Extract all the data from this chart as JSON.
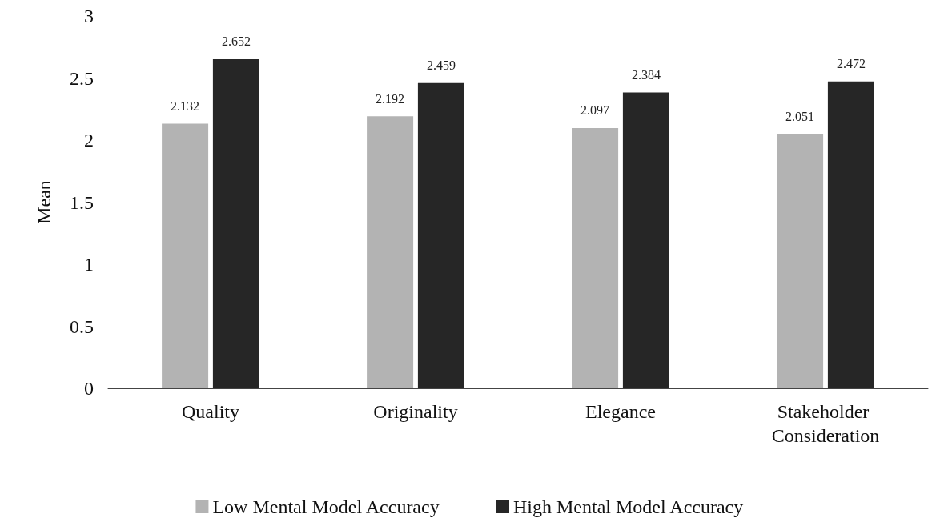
{
  "chart_data": {
    "type": "bar",
    "ylabel": "Mean",
    "categories": [
      "Quality",
      "Originality",
      "Elegance",
      "Stakeholder Consideration"
    ],
    "series": [
      {
        "name": "Low Mental Model Accuracy",
        "color": "#b3b3b3",
        "values": [
          2.132,
          2.192,
          2.097,
          2.051
        ]
      },
      {
        "name": "High Mental Model Accuracy",
        "color": "#262626",
        "values": [
          2.652,
          2.459,
          2.384,
          2.472
        ]
      }
    ],
    "ylim": [
      0,
      3
    ],
    "yticks": [
      0,
      0.5,
      1,
      1.5,
      2,
      2.5,
      3
    ],
    "grid": false,
    "legend": "bottom",
    "data_labels": true
  }
}
